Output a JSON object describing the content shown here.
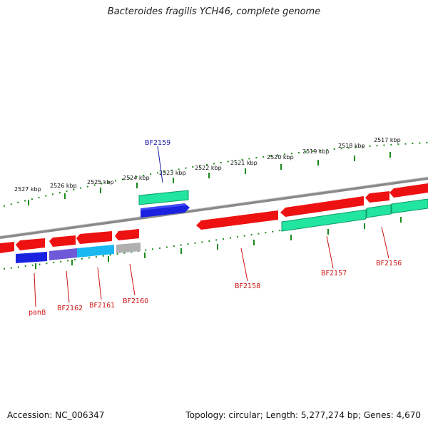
{
  "title": "Bacteroides fragilis YCH46, complete genome",
  "footer": {
    "accession": "Accession: NC_006347",
    "info": "Topology: circular; Length: 5,277,274 bp; Genes: 4,670"
  },
  "scale_labels": [
    "2527 kbp",
    "2526 kbp",
    "2525 kbp",
    "2524 kbp",
    "2523 kbp",
    "2522 kbp",
    "2521 kbp",
    "2520 kbp",
    "2519 kbp",
    "2518 kbp",
    "2517 kbp"
  ],
  "gene_labels": {
    "BF2159": "BF2159",
    "panB": "panB",
    "BF2162": "BF2162",
    "BF2161": "BF2161",
    "BF2160": "BF2160",
    "BF2158": "BF2158",
    "BF2157": "BF2157",
    "BF2156": "BF2156"
  },
  "colors": {
    "cds": "#ee1111",
    "cds_feature_green": "#22e6a0",
    "blue_feature": "#1a22e0",
    "purple_feature": "#6e5ad8",
    "cyan_feature": "#1ab8f0",
    "grey_feature": "#b0b0b0",
    "backbone": "#8a8a8a",
    "scale_ticks": "#1a8a1a",
    "label_forward": "#1a1aaa",
    "label_reverse": "#cc1111"
  }
}
